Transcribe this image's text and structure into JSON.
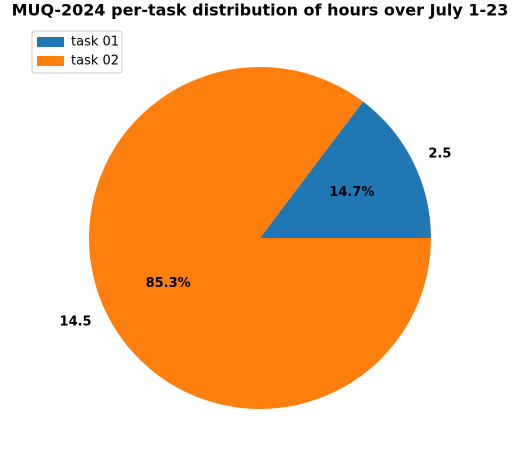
{
  "chart_data": {
    "type": "pie",
    "title": "MUQ-2024 per-task distribution of hours over July 1-23",
    "labels": [
      "task 01",
      "task 02"
    ],
    "values": [
      2.5,
      14.5
    ],
    "percent_labels": [
      "14.7%",
      "85.3%"
    ],
    "colors": [
      "#1f77b4",
      "#ff7f0e"
    ],
    "start_angle": 0,
    "legend": "upper left"
  }
}
